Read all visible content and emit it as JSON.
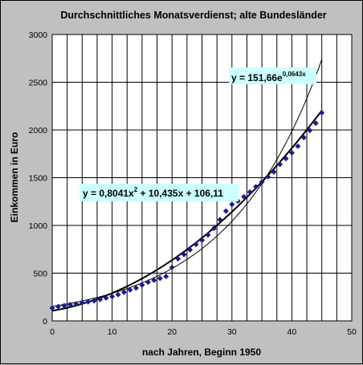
{
  "chart_data": {
    "type": "scatter",
    "title": "Durchschnittliches Monatsverdienst; alte Bundesländer",
    "xlabel": "nach Jahren, Beginn 1950",
    "ylabel": "Einkommen in Euro",
    "xlim": [
      0,
      50
    ],
    "ylim": [
      0,
      3000
    ],
    "x_ticks": [
      "0",
      "10",
      "20",
      "30",
      "40",
      "50"
    ],
    "y_ticks": [
      "0",
      "500",
      "1000",
      "1500",
      "2000",
      "2500",
      "3000"
    ],
    "grid": true,
    "colors": {
      "plot_bg": "#ffffff",
      "points": "#1c1c8c",
      "annotation_bg": "#ccffff",
      "frame_bg": "#c0c0c0"
    },
    "series": [
      {
        "type": "scatter",
        "x": [
          0,
          1,
          2,
          3,
          4,
          5,
          6,
          7,
          8,
          9,
          10,
          11,
          12,
          13,
          14,
          15,
          16,
          17,
          18,
          19,
          20,
          21,
          22,
          23,
          24,
          25,
          26,
          27,
          28,
          29,
          30,
          31,
          32,
          33,
          34,
          35,
          36,
          37,
          38,
          39,
          40,
          41,
          42,
          43,
          44,
          45
        ],
        "y": [
          135,
          150,
          160,
          170,
          178,
          190,
          200,
          210,
          225,
          240,
          255,
          275,
          300,
          325,
          345,
          375,
          405,
          425,
          445,
          465,
          560,
          650,
          695,
          745,
          800,
          845,
          900,
          970,
          1060,
          1150,
          1220,
          1255,
          1300,
          1350,
          1405,
          1455,
          1510,
          1560,
          1640,
          1700,
          1760,
          1830,
          1920,
          1995,
          2070,
          2180
        ]
      },
      {
        "type": "line",
        "fit": "polynomial",
        "x_range": [
          0,
          45
        ],
        "coefficients": [
          0.8041,
          10.435,
          106.11
        ]
      },
      {
        "type": "line",
        "fit": "exponential",
        "x_range": [
          0,
          45
        ],
        "a": 151.66,
        "b": 0.0643
      }
    ],
    "annotations": {
      "poly": {
        "prefix": "y = 0,8041x",
        "sup": "2",
        "suffix": " + 10,435x + 106,11"
      },
      "exp": {
        "prefix": "y = 151,66e",
        "sup": "0,0643x"
      }
    }
  }
}
